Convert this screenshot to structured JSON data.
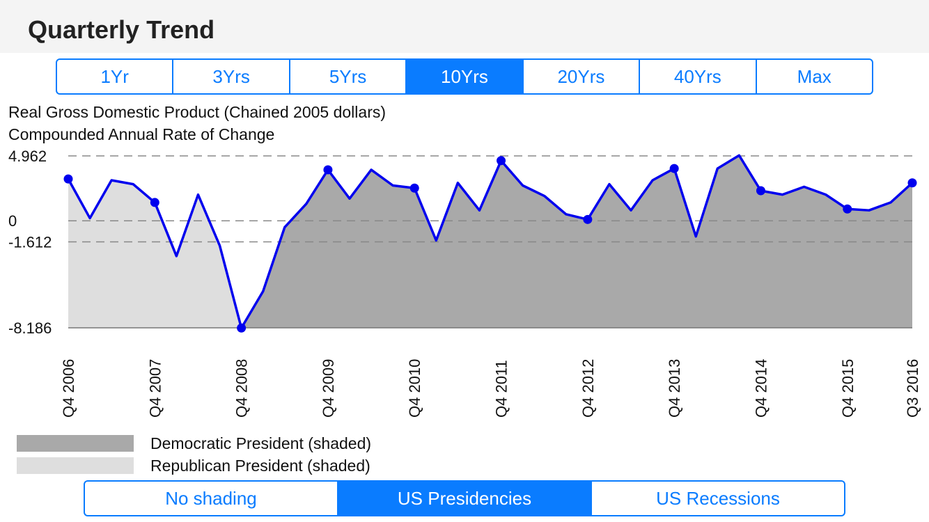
{
  "page": {
    "title": "Quarterly Trend"
  },
  "range_control": {
    "options": [
      "1Yr",
      "3Yrs",
      "5Yrs",
      "10Yrs",
      "20Yrs",
      "40Yrs",
      "Max"
    ],
    "selected": "10Yrs"
  },
  "shading_control": {
    "options": [
      "No shading",
      "US Presidencies",
      "US Recessions"
    ],
    "selected": "US Presidencies"
  },
  "colors": {
    "accent": "#0a7cff",
    "line": "#0000ee",
    "democratic_fill": "#a9a9a9",
    "republican_fill": "#dedede"
  },
  "legend": [
    {
      "label": "Democratic President (shaded)",
      "color": "#a9a9a9"
    },
    {
      "label": "Republican President (shaded)",
      "color": "#dedede"
    }
  ],
  "chart_data": {
    "type": "area",
    "title": "Real Gross Domestic Product (Chained 2005 dollars)",
    "subtitle": "Compounded Annual Rate of Change",
    "ytick_labels": [
      "4.962",
      "0",
      "-1.612",
      "-8.186"
    ],
    "yticks": [
      4.962,
      0,
      -1.612,
      -8.186
    ],
    "ylim": [
      -8.186,
      4.962
    ],
    "grid": "dashed at y tick values",
    "xtick_labels": [
      "Q4 2006",
      "Q4 2007",
      "Q4 2008",
      "Q4 2009",
      "Q4 2010",
      "Q4 2011",
      "Q4 2012",
      "Q4 2013",
      "Q4 2014",
      "Q4 2015",
      "Q3 2016"
    ],
    "xtick_index": [
      0,
      4,
      8,
      12,
      16,
      20,
      24,
      28,
      32,
      36,
      39
    ],
    "x": [
      "Q4 2006",
      "Q1 2007",
      "Q2 2007",
      "Q3 2007",
      "Q4 2007",
      "Q1 2008",
      "Q2 2008",
      "Q3 2008",
      "Q4 2008",
      "Q1 2009",
      "Q2 2009",
      "Q3 2009",
      "Q4 2009",
      "Q1 2010",
      "Q2 2010",
      "Q3 2010",
      "Q4 2010",
      "Q1 2011",
      "Q2 2011",
      "Q3 2011",
      "Q4 2011",
      "Q1 2012",
      "Q2 2012",
      "Q3 2012",
      "Q4 2012",
      "Q1 2013",
      "Q2 2013",
      "Q3 2013",
      "Q4 2013",
      "Q1 2014",
      "Q2 2014",
      "Q3 2014",
      "Q4 2014",
      "Q1 2015",
      "Q2 2015",
      "Q3 2015",
      "Q4 2015",
      "Q1 2016",
      "Q2 2016",
      "Q3 2016"
    ],
    "series": [
      {
        "name": "Real GDP % change (annual rate)",
        "values": [
          3.2,
          0.2,
          3.1,
          2.8,
          1.4,
          -2.7,
          2.0,
          -1.9,
          -8.2,
          -5.4,
          -0.5,
          1.3,
          3.9,
          1.7,
          3.9,
          2.7,
          2.5,
          -1.5,
          2.9,
          0.8,
          4.6,
          2.7,
          1.9,
          0.5,
          0.1,
          2.8,
          0.8,
          3.1,
          4.0,
          -1.2,
          4.0,
          5.0,
          2.3,
          2.0,
          2.6,
          2.0,
          0.9,
          0.8,
          1.4,
          2.9
        ]
      }
    ],
    "markers_at_index": [
      0,
      4,
      8,
      12,
      16,
      20,
      24,
      28,
      32,
      36,
      39
    ],
    "shading": [
      {
        "party": "Republican",
        "from": "Q4 2006",
        "to": "Q4 2008"
      },
      {
        "party": "Democratic",
        "from": "Q4 2008",
        "to": "Q3 2016"
      }
    ]
  }
}
